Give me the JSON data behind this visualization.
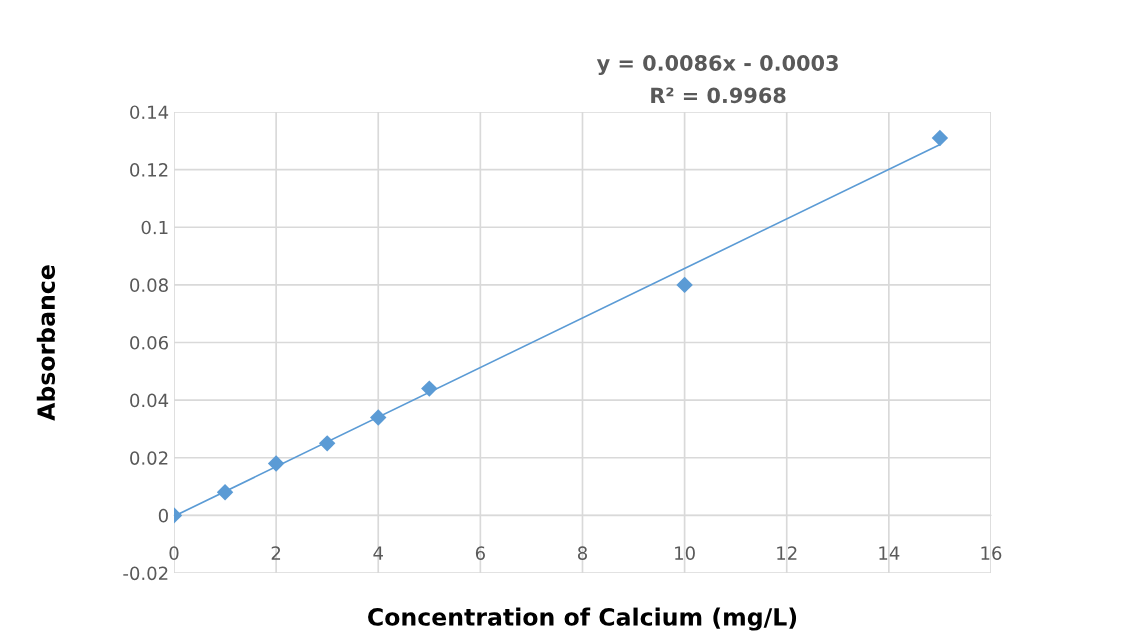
{
  "chart_data": {
    "type": "scatter",
    "xlabel": "Concentration of Calcium (mg/L)",
    "ylabel": "Absorbance",
    "annotations": [
      "y = 0.0086x - 0.0003",
      "R² = 0.9968"
    ],
    "x": [
      0,
      1,
      2,
      3,
      4,
      5,
      10,
      15
    ],
    "series": [
      {
        "color": "#5b9bd5",
        "marker": "diamond",
        "values": [
          0,
          0.008,
          0.018,
          0.025,
          0.034,
          0.044,
          0.08,
          0.131
        ]
      },
      {
        "type": "line",
        "color": "#5b9bd5",
        "x": [
          0,
          15
        ],
        "values": [
          -0.0003,
          0.1287
        ]
      }
    ],
    "xlim": [
      0,
      16
    ],
    "xticks": [
      0,
      2,
      4,
      6,
      8,
      10,
      12,
      14,
      16
    ],
    "ylim": [
      -0.02,
      0.14
    ],
    "yticks": [
      -0.02,
      0,
      0.02,
      0.04,
      0.06,
      0.08,
      0.1,
      0.12,
      0.14
    ],
    "grid": true,
    "legend": false
  }
}
